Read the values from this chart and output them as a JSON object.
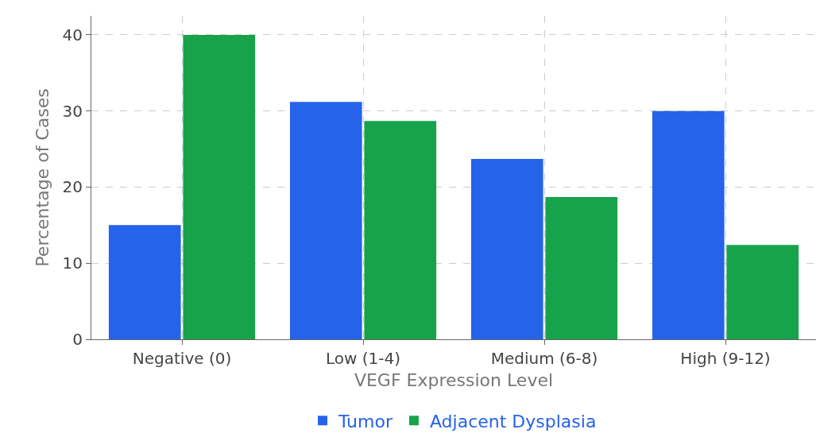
{
  "chart_data": {
    "type": "bar",
    "xlabel": "VEGF Expression Level",
    "ylabel": "Percentage of Cases",
    "categories": [
      "Negative (0)",
      "Low (1-4)",
      "Medium (6-8)",
      "High (9-12)"
    ],
    "series": [
      {
        "name": "Tumor",
        "color": "#2563eb",
        "values": [
          15,
          31.2,
          23.7,
          30
        ]
      },
      {
        "name": "Adjacent Dysplasia",
        "color": "#16a34a",
        "values": [
          40,
          28.7,
          18.7,
          12.4
        ]
      }
    ],
    "ylim": [
      0,
      42.5
    ],
    "yticks": [
      0,
      10,
      20,
      30,
      40
    ],
    "grid": true,
    "legend": "bottom"
  }
}
